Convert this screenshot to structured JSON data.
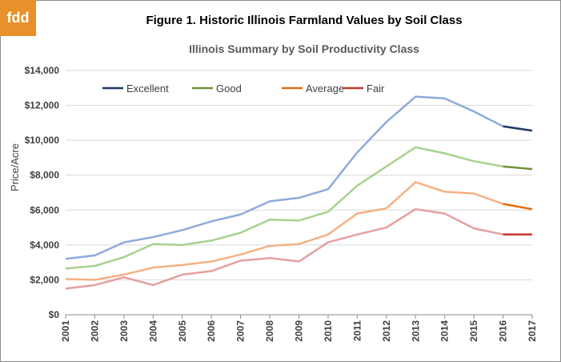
{
  "logo": {
    "text": "fdd",
    "color": "#e8902a"
  },
  "header": {
    "figure_title": "Figure 1.  Historic Illinois Farmland Values by Soil Class"
  },
  "chart_data": {
    "type": "line",
    "title": "Illinois Summary by Soil Productivity Class",
    "xlabel": "",
    "ylabel": "Price/Acre",
    "ylim": [
      0,
      14000
    ],
    "yticks": [
      0,
      2000,
      4000,
      6000,
      8000,
      10000,
      12000,
      14000
    ],
    "ytick_labels": [
      "$0",
      "$2,000",
      "$4,000",
      "$6,000",
      "$8,000",
      "$10,000",
      "$12,000",
      "$14,000"
    ],
    "grid": true,
    "legend_position": "top",
    "categories": [
      "2001",
      "2002",
      "2003",
      "2004",
      "2005",
      "2006",
      "2007",
      "2008",
      "2009",
      "2010",
      "2011",
      "2012",
      "2013",
      "2014",
      "2015",
      "2016",
      "2017"
    ],
    "series": [
      {
        "name": "Excellent",
        "color": "#1f3864",
        "faded_color": "#8faadc",
        "values": [
          3200,
          3400,
          4150,
          4450,
          4850,
          5350,
          5750,
          6500,
          6700,
          7200,
          9300,
          11050,
          12500,
          12400,
          11650,
          10800,
          10550
        ]
      },
      {
        "name": "Good",
        "color": "#70903c",
        "faded_color": "#a9d18e",
        "values": [
          2650,
          2800,
          3300,
          4050,
          4000,
          4250,
          4700,
          5450,
          5400,
          5900,
          7400,
          8500,
          9600,
          9250,
          8800,
          8500,
          8350
        ]
      },
      {
        "name": "Average",
        "color": "#e36c0a",
        "faded_color": "#f4b183",
        "values": [
          2050,
          2000,
          2300,
          2700,
          2850,
          3050,
          3450,
          3950,
          4050,
          4600,
          5800,
          6100,
          7600,
          7050,
          6950,
          6350,
          6050
        ]
      },
      {
        "name": "Fair",
        "color": "#c0392b",
        "faded_color": "#e6a0a0",
        "values": [
          1500,
          1700,
          2150,
          1700,
          2300,
          2500,
          3100,
          3250,
          3050,
          4150,
          4600,
          5000,
          6050,
          5800,
          4950,
          4600,
          4600
        ]
      }
    ],
    "highlight_from_index": 15
  }
}
